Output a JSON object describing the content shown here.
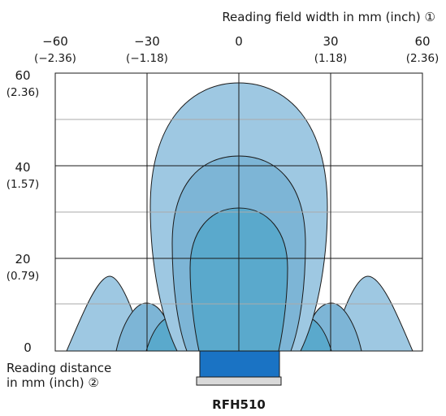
{
  "x_axis": {
    "title": "Reading field width in mm (inch) ①",
    "ticks": [
      {
        "mm": "−60",
        "inch": "(−2.36)"
      },
      {
        "mm": "−30",
        "inch": "(−1.18)"
      },
      {
        "mm": "0",
        "inch": ""
      },
      {
        "mm": "30",
        "inch": "(1.18)"
      },
      {
        "mm": "60",
        "inch": "(2.36)"
      }
    ]
  },
  "y_axis": {
    "title_line1": "Reading distance",
    "title_line2": "in mm (inch) ②",
    "ticks": [
      {
        "mm": "60",
        "inch": "(2.36)"
      },
      {
        "mm": "40",
        "inch": "(1.57)"
      },
      {
        "mm": "20",
        "inch": "(0.79)"
      },
      {
        "mm": "0",
        "inch": ""
      }
    ]
  },
  "device_label": "RFH510",
  "colors": {
    "field_large": "#9ec8e2",
    "field_medium": "#7db5d6",
    "field_small": "#5aa9cc",
    "device": "#1a73c4",
    "grid": "#1a1a1a",
    "grid_minor": "#aaaaaa"
  },
  "reading_fields": [
    {
      "name": "large",
      "max_distance_mm": 58,
      "half_width_mm": 48
    },
    {
      "name": "medium",
      "max_distance_mm": 42,
      "half_width_mm": 30
    },
    {
      "name": "small",
      "max_distance_mm": 31,
      "half_width_mm": 16
    }
  ]
}
